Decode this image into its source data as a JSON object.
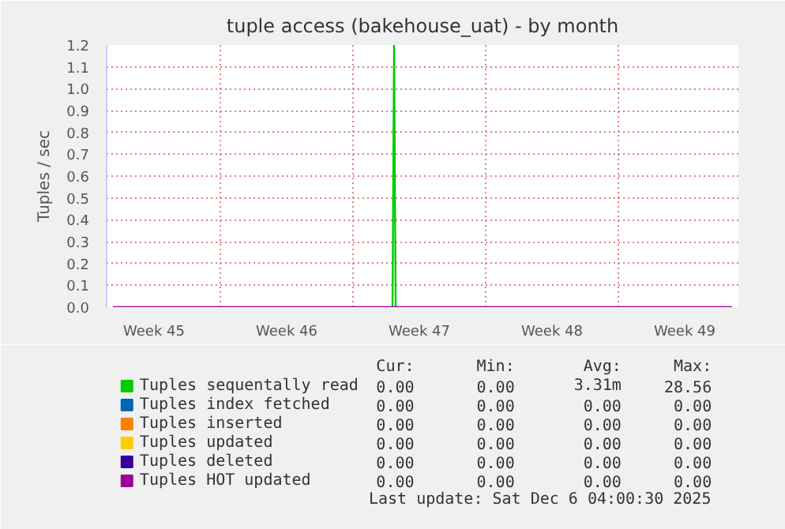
{
  "chart_data": {
    "type": "line",
    "title": "tuple access (bakehouse_uat) - by month",
    "ylabel": "Tuples / sec",
    "xlim": [
      "2025-11-04T00:00",
      "2025-12-07T08:00"
    ],
    "ylim": [
      0,
      1.2
    ],
    "yticks": [
      {
        "value": 0,
        "label": "0.0"
      },
      {
        "value": 0.1,
        "label": "0.1"
      },
      {
        "value": 0.2,
        "label": "0.2"
      },
      {
        "value": 0.3,
        "label": "0.3"
      },
      {
        "value": 0.4,
        "label": "0.4"
      },
      {
        "value": 0.5,
        "label": "0.5"
      },
      {
        "value": 0.6,
        "label": "0.6"
      },
      {
        "value": 0.7,
        "label": "0.7"
      },
      {
        "value": 0.8,
        "label": "0.8"
      },
      {
        "value": 0.9,
        "label": "0.9"
      },
      {
        "value": 1.0,
        "label": "1.0"
      },
      {
        "value": 1.1,
        "label": "1.1"
      },
      {
        "value": 1.2,
        "label": "1.2"
      }
    ],
    "xticks": [
      {
        "value": "2025-11-06T12:00",
        "label": "Week 45"
      },
      {
        "value": "2025-11-10",
        "label": null
      },
      {
        "value": "2025-11-13T12:00",
        "label": "Week 46"
      },
      {
        "value": "2025-11-17",
        "label": null
      },
      {
        "value": "2025-11-20T12:00",
        "label": "Week 47"
      },
      {
        "value": "2025-11-24",
        "label": null
      },
      {
        "value": "2025-11-27T12:00",
        "label": "Week 48"
      },
      {
        "value": "2025-12-01",
        "label": null
      },
      {
        "value": "2025-12-04T12:00",
        "label": "Week 49"
      }
    ],
    "grid": true,
    "legend": "bottom",
    "x": [
      "2025-11-04T08:00",
      "2025-11-19T02:00",
      "2025-11-19T04:00",
      "2025-11-19T06:00",
      "2025-12-07T00:00"
    ],
    "series": [
      {
        "name": "Tuples sequentally read",
        "color": "#00cc00",
        "values": [
          null,
          0,
          1.2,
          0,
          null
        ]
      },
      {
        "name": "Tuples index fetched",
        "color": "#0066b3",
        "values": [
          null,
          null,
          null,
          null,
          null
        ]
      },
      {
        "name": "Tuples inserted",
        "color": "#ff8000",
        "values": [
          null,
          null,
          null,
          null,
          null
        ]
      },
      {
        "name": "Tuples updated",
        "color": "#ffcc00",
        "values": [
          null,
          null,
          null,
          null,
          null
        ]
      },
      {
        "name": "Tuples deleted",
        "color": "#330099",
        "values": [
          null,
          null,
          null,
          null,
          null
        ]
      },
      {
        "name": "Tuples HOT updated",
        "color": "#990099",
        "values": [
          0,
          0,
          0,
          0,
          0
        ]
      }
    ],
    "annotations": [
      "Cur:",
      "Min:",
      "Avg:",
      "Max:",
      "0.00",
      "0.00",
      "3.31m",
      "28.56",
      "0.00",
      "0.00",
      "0.00",
      "0.00",
      "0.00",
      "0.00",
      "0.00",
      "0.00",
      "0.00",
      "0.00",
      "0.00",
      "0.00",
      "0.00",
      "0.00",
      "0.00",
      "0.00",
      "0.00",
      "0.00",
      "0.00",
      "0.00",
      "Last update: Sat Dec  6 04:00:30 2025"
    ]
  }
}
